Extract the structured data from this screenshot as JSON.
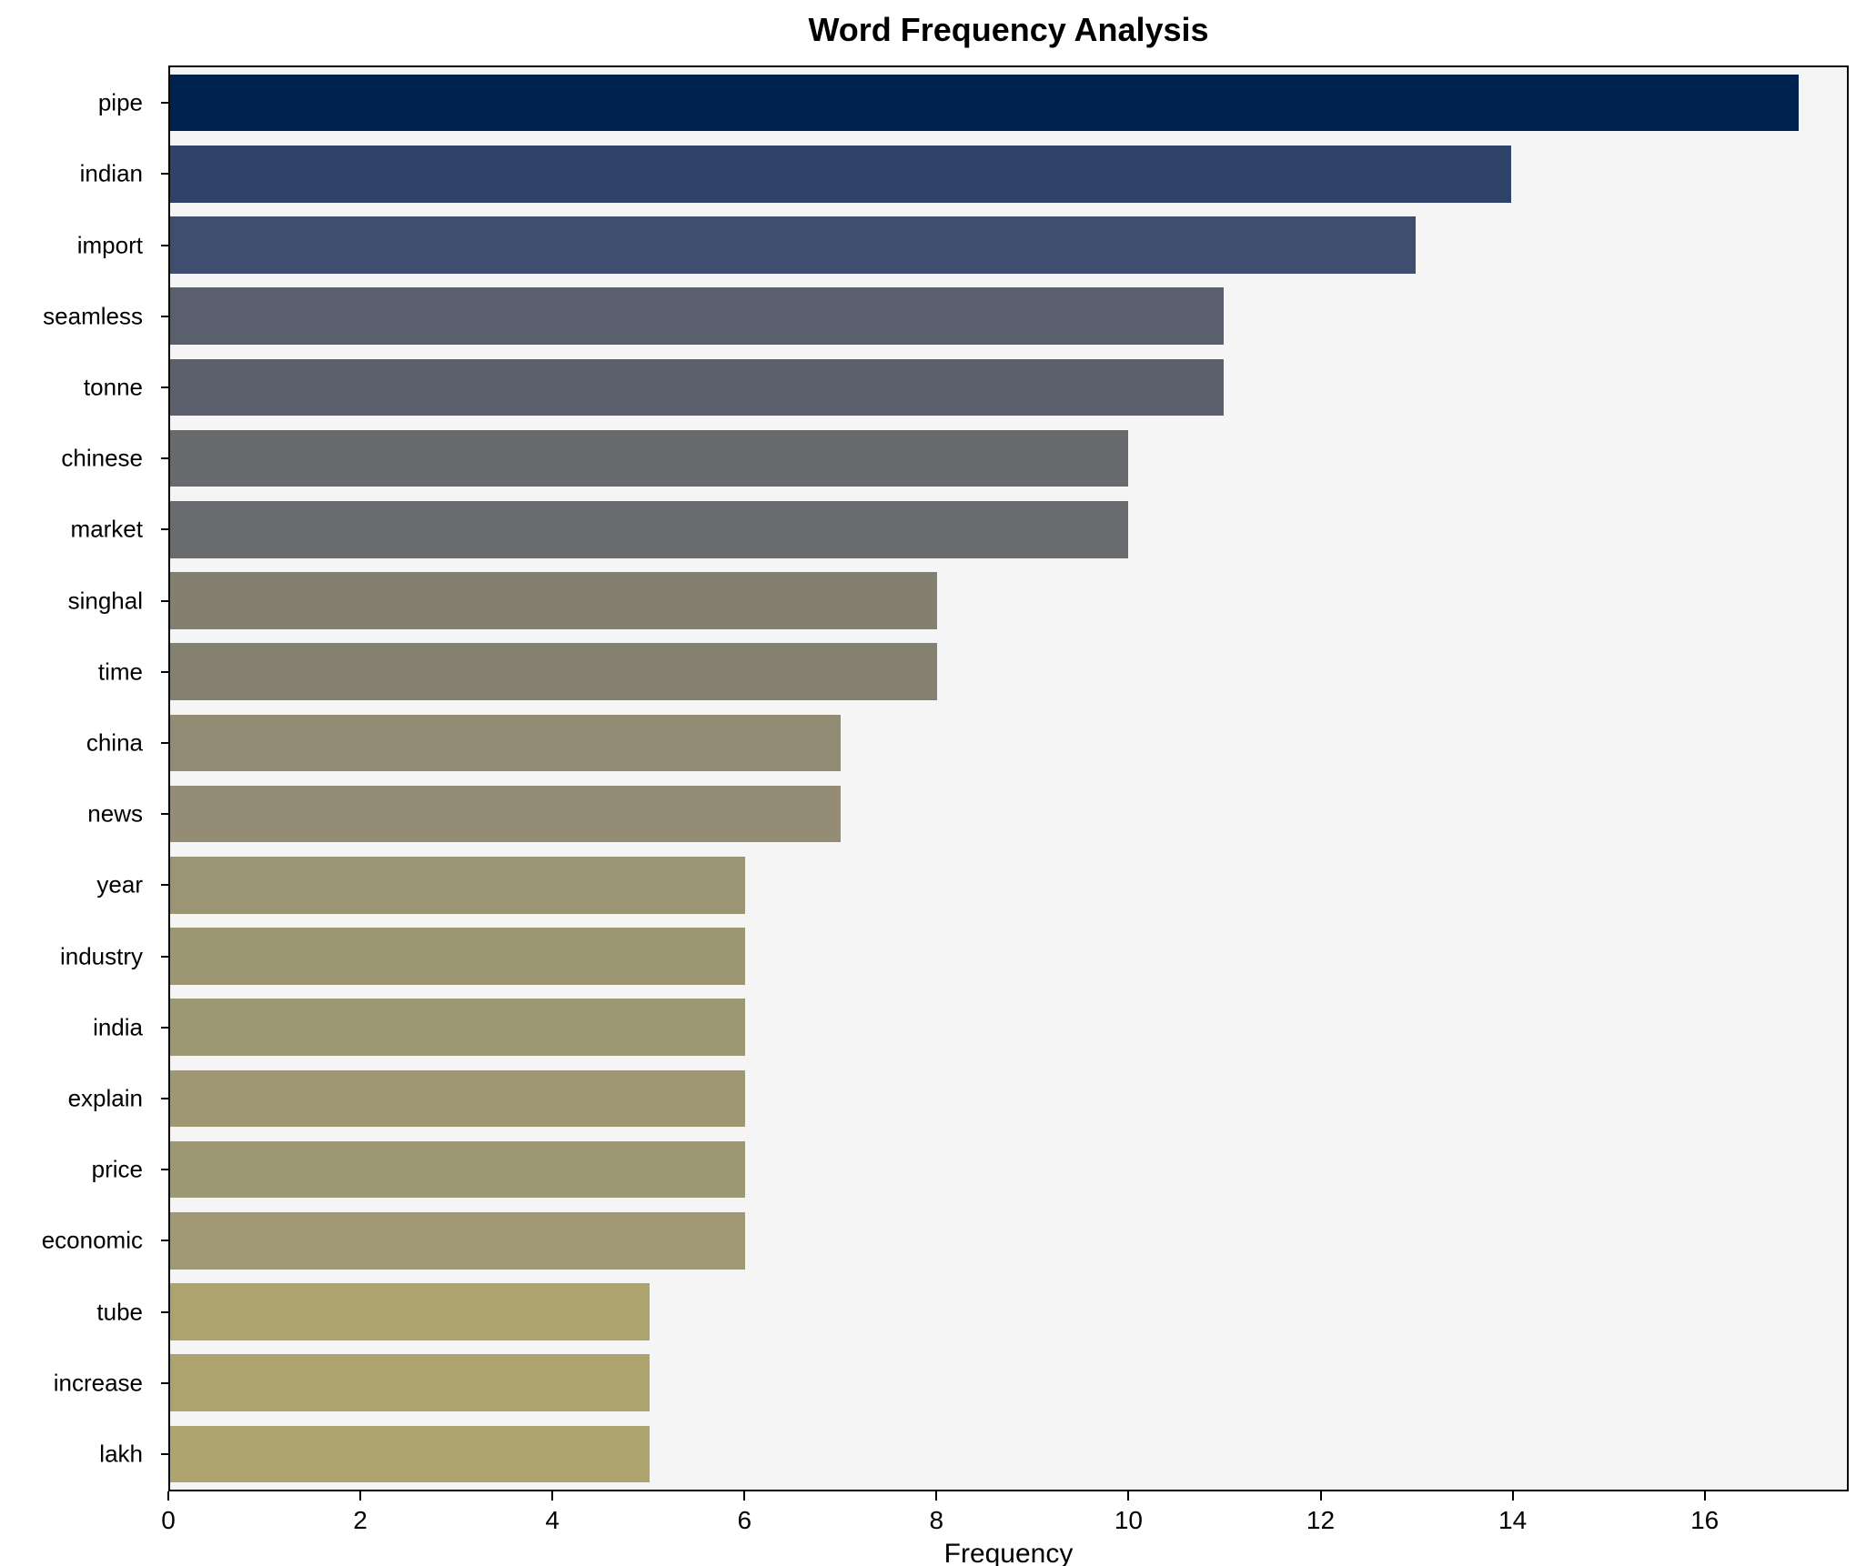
{
  "chart_data": {
    "type": "bar",
    "orientation": "horizontal",
    "title": "Word Frequency Analysis",
    "xlabel": "Frequency",
    "ylabel": "",
    "xlim": [
      0,
      17.5
    ],
    "x_ticks": [
      0,
      2,
      4,
      6,
      8,
      10,
      12,
      14,
      16
    ],
    "grid": false,
    "plot_background": "#f5f5f5",
    "figure_background": "#ffffff",
    "spine_color": "#000000",
    "categories": [
      "pipe",
      "indian",
      "import",
      "seamless",
      "tonne",
      "chinese",
      "market",
      "singhal",
      "time",
      "china",
      "news",
      "year",
      "industry",
      "india",
      "explain",
      "price",
      "economic",
      "tube",
      "increase",
      "lakh"
    ],
    "values": [
      17,
      14,
      13,
      11,
      11,
      10,
      10,
      8,
      8,
      7,
      7,
      6,
      6,
      6,
      6,
      6,
      6,
      5,
      5,
      5
    ],
    "bar_colors": [
      "#00224e",
      "#2f4268",
      "#3f4e6e",
      "#5a5f6d",
      "#5c606d",
      "#696a6e",
      "#6a6b6e",
      "#838070",
      "#848170",
      "#938c74",
      "#948c74",
      "#9b9573",
      "#9c9672",
      "#9d9772",
      "#9e9772",
      "#9e9872",
      "#9f9873",
      "#aca36e",
      "#ada36e",
      "#ada46f"
    ]
  }
}
